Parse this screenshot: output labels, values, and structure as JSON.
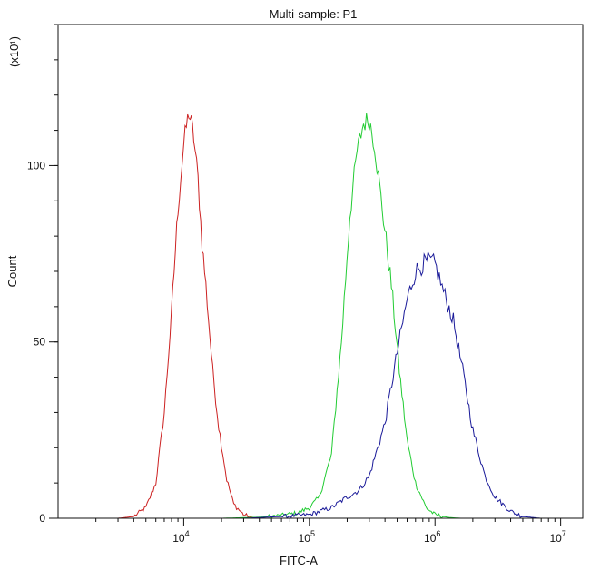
{
  "chart_data": {
    "type": "line",
    "title": "Multi-sample: P1",
    "xlabel": "FITC-A",
    "ylabel": "Count",
    "y_multiplier_label": "(x10¹)",
    "x_scale": "log",
    "xlim": [
      1000,
      15000000
    ],
    "ylim": [
      0,
      140
    ],
    "x_major_ticks": [
      10000,
      100000,
      1000000,
      10000000
    ],
    "x_tick_labels": [
      {
        "base": "10",
        "exp": "4"
      },
      {
        "base": "10",
        "exp": "5"
      },
      {
        "base": "10",
        "exp": "6"
      },
      {
        "base": "10",
        "exp": "7"
      }
    ],
    "y_major_ticks": [
      0,
      50,
      100
    ],
    "y_tick_labels": [
      "0",
      "50",
      "100"
    ],
    "grid": false,
    "legend": "none",
    "series": [
      {
        "color": "#cc2222",
        "x": [
          3000,
          4000,
          5000,
          6000,
          7000,
          8000,
          9000,
          10000,
          10500,
          11000,
          11500,
          12000,
          13000,
          14000,
          15000,
          17000,
          19000,
          22000,
          25000,
          30000,
          35000,
          40000
        ],
        "y": [
          0,
          0.5,
          3,
          10,
          30,
          58,
          88,
          106,
          111,
          115,
          112,
          108,
          96,
          78,
          66,
          42,
          26,
          11,
          4,
          1,
          0.3,
          0
        ]
      },
      {
        "color": "#22cc33",
        "x": [
          20000,
          40000,
          60000,
          80000,
          100000,
          120000,
          150000,
          180000,
          210000,
          240000,
          270000,
          300000,
          330000,
          380000,
          450000,
          520000,
          600000,
          700000,
          850000,
          1000000,
          1300000,
          1600000
        ],
        "y": [
          0,
          0.3,
          0.8,
          1.5,
          3,
          6,
          18,
          50,
          86,
          104,
          112,
          113,
          106,
          88,
          66,
          42,
          22,
          10,
          3,
          1,
          0.2,
          0
        ]
      },
      {
        "color": "#1a1a99",
        "x": [
          30000,
          60000,
          100000,
          150000,
          200000,
          250000,
          300000,
          400000,
          500000,
          600000,
          700000,
          800000,
          900000,
          1000000,
          1200000,
          1400000,
          1700000,
          2000000,
          2500000,
          3000000,
          4000000,
          5000000,
          7000000
        ],
        "y": [
          0,
          0.5,
          1,
          3,
          6,
          8,
          12,
          27,
          47,
          62,
          70,
          72,
          73,
          72,
          63,
          56,
          40,
          25,
          12,
          6,
          2,
          0.5,
          0
        ]
      }
    ]
  }
}
